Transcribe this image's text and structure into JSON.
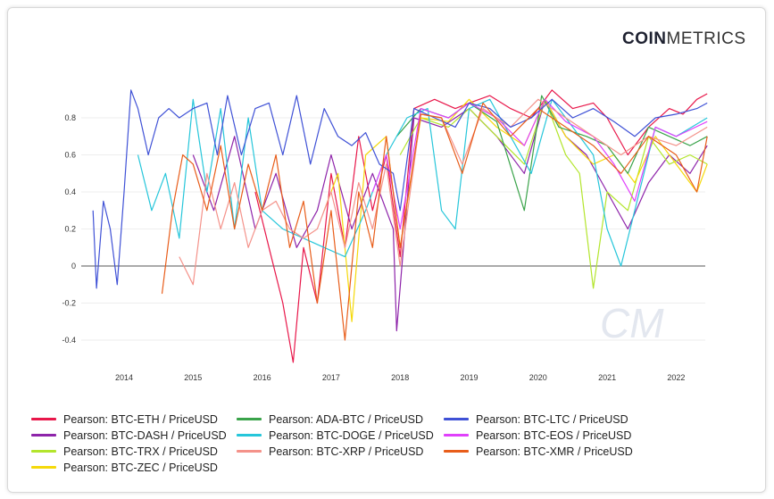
{
  "logo": {
    "bold": "COIN",
    "light": "METRICS"
  },
  "chart_data": {
    "type": "line",
    "title": "",
    "xlabel": "",
    "ylabel": "",
    "xlim": [
      2013.55,
      2022.45
    ],
    "ylim": [
      -0.55,
      0.97
    ],
    "x_ticks": [
      "2014",
      "2015",
      "2016",
      "2017",
      "2018",
      "2019",
      "2020",
      "2021",
      "2022"
    ],
    "y_ticks": [
      0.8,
      0.6,
      0.4,
      0.2,
      0,
      -0.2,
      -0.4
    ],
    "y_tick_labels": [
      "0.8",
      "0.6",
      "0.4",
      "0.2",
      "0",
      "-0.2",
      "-0.4"
    ],
    "grid": true,
    "legend_position": "bottom",
    "series": [
      {
        "name": "Pearson: BTC-ETH / PriceUSD",
        "color": "#e8174a",
        "x": [
          2015.9,
          2016.1,
          2016.3,
          2016.45,
          2016.6,
          2016.8,
          2017.0,
          2017.2,
          2017.4,
          2017.6,
          2017.8,
          2018.0,
          2018.2,
          2018.5,
          2018.8,
          2019.0,
          2019.3,
          2019.6,
          2019.9,
          2020.2,
          2020.5,
          2020.8,
          2021.0,
          2021.3,
          2021.6,
          2021.9,
          2022.1,
          2022.3,
          2022.45
        ],
        "y": [
          0.4,
          0.1,
          -0.2,
          -0.52,
          0.1,
          -0.2,
          0.5,
          0.1,
          0.7,
          0.3,
          0.6,
          0.05,
          0.85,
          0.9,
          0.85,
          0.88,
          0.92,
          0.85,
          0.8,
          0.95,
          0.85,
          0.88,
          0.8,
          0.6,
          0.75,
          0.85,
          0.82,
          0.9,
          0.93
        ]
      },
      {
        "name": "Pearson: BTC-DASH / PriceUSD",
        "color": "#8e24aa",
        "x": [
          2015.0,
          2015.3,
          2015.6,
          2015.9,
          2016.2,
          2016.5,
          2016.8,
          2017.0,
          2017.3,
          2017.6,
          2017.9,
          2017.95,
          2018.2,
          2018.6,
          2019.0,
          2019.4,
          2019.8,
          2020.1,
          2020.4,
          2020.7,
          2021.0,
          2021.3,
          2021.6,
          2021.9,
          2022.2,
          2022.45
        ],
        "y": [
          0.6,
          0.3,
          0.7,
          0.2,
          0.5,
          0.1,
          0.3,
          0.6,
          0.2,
          0.5,
          0.2,
          -0.35,
          0.8,
          0.75,
          0.85,
          0.7,
          0.5,
          0.9,
          0.7,
          0.6,
          0.4,
          0.2,
          0.45,
          0.6,
          0.5,
          0.65
        ]
      },
      {
        "name": "Pearson: BTC-TRX / PriceUSD",
        "color": "#b3e52c",
        "x": [
          2018.0,
          2018.3,
          2018.7,
          2019.0,
          2019.4,
          2019.8,
          2020.1,
          2020.4,
          2020.6,
          2020.8,
          2021.0,
          2021.3,
          2021.6,
          2021.9,
          2022.2,
          2022.45
        ],
        "y": [
          0.6,
          0.8,
          0.75,
          0.85,
          0.7,
          0.55,
          0.9,
          0.6,
          0.5,
          -0.12,
          0.4,
          0.3,
          0.7,
          0.55,
          0.6,
          0.55
        ]
      },
      {
        "name": "Pearson: BTC-ZEC / PriceUSD",
        "color": "#f5d90a",
        "x": [
          2016.9,
          2017.1,
          2017.3,
          2017.5,
          2017.8,
          2018.0,
          2018.3,
          2018.7,
          2019.0,
          2019.4,
          2019.8,
          2020.1,
          2020.4,
          2020.8,
          2021.1,
          2021.4,
          2021.7,
          2022.0,
          2022.3,
          2022.45
        ],
        "y": [
          0.3,
          0.5,
          -0.3,
          0.6,
          0.7,
          0.1,
          0.8,
          0.78,
          0.9,
          0.75,
          0.65,
          0.9,
          0.7,
          0.55,
          0.6,
          0.45,
          0.7,
          0.55,
          0.4,
          0.55
        ]
      },
      {
        "name": "Pearson: ADA-BTC / PriceUSD",
        "color": "#3aa34a",
        "x": [
          2017.95,
          2018.3,
          2018.7,
          2019.0,
          2019.4,
          2019.8,
          2020.05,
          2020.3,
          2020.7,
          2021.0,
          2021.3,
          2021.6,
          2021.9,
          2022.2,
          2022.45
        ],
        "y": [
          0.7,
          0.85,
          0.8,
          0.88,
          0.78,
          0.3,
          0.92,
          0.75,
          0.7,
          0.65,
          0.5,
          0.75,
          0.7,
          0.65,
          0.7
        ]
      },
      {
        "name": "Pearson: BTC-DOGE / PriceUSD",
        "color": "#26c6da",
        "x": [
          2014.2,
          2014.4,
          2014.6,
          2014.8,
          2015.0,
          2015.2,
          2015.4,
          2015.6,
          2015.8,
          2016.0,
          2016.3,
          2016.6,
          2016.9,
          2017.2,
          2017.5,
          2017.8,
          2018.1,
          2018.4,
          2018.6,
          2018.8,
          2019.0,
          2019.3,
          2019.6,
          2019.9,
          2020.2,
          2020.5,
          2020.8,
          2021.0,
          2021.2,
          2021.4,
          2021.7,
          2022.0,
          2022.45
        ],
        "y": [
          0.6,
          0.3,
          0.5,
          0.15,
          0.9,
          0.4,
          0.85,
          0.2,
          0.8,
          0.3,
          0.2,
          0.15,
          0.1,
          0.05,
          0.3,
          0.6,
          0.8,
          0.85,
          0.3,
          0.2,
          0.85,
          0.9,
          0.7,
          0.5,
          0.9,
          0.75,
          0.6,
          0.2,
          0.0,
          0.3,
          0.75,
          0.7,
          0.8
        ]
      },
      {
        "name": "Pearson: BTC-EOS / PriceUSD",
        "color": "#e040fb",
        "x": [
          2017.6,
          2017.8,
          2018.0,
          2018.3,
          2018.7,
          2019.0,
          2019.4,
          2019.8,
          2020.1,
          2020.4,
          2020.8,
          2021.1,
          2021.4,
          2021.7,
          2022.0,
          2022.45
        ],
        "y": [
          0.4,
          0.6,
          0.2,
          0.85,
          0.8,
          0.88,
          0.8,
          0.65,
          0.9,
          0.78,
          0.7,
          0.55,
          0.35,
          0.75,
          0.7,
          0.78
        ]
      },
      {
        "name": "Pearson: BTC-XRP / PriceUSD",
        "color": "#f4928a",
        "x": [
          2014.8,
          2015.0,
          2015.2,
          2015.4,
          2015.6,
          2015.8,
          2016.0,
          2016.2,
          2016.4,
          2016.6,
          2016.8,
          2017.0,
          2017.2,
          2017.4,
          2017.6,
          2017.8,
          2018.0,
          2018.3,
          2018.6,
          2018.9,
          2019.2,
          2019.6,
          2020.0,
          2020.4,
          2020.8,
          2021.2,
          2021.6,
          2022.0,
          2022.45
        ],
        "y": [
          0.05,
          -0.1,
          0.5,
          0.2,
          0.45,
          0.1,
          0.3,
          0.35,
          0.2,
          0.15,
          0.2,
          0.4,
          0.1,
          0.45,
          0.2,
          0.55,
          0.0,
          0.82,
          0.8,
          0.55,
          0.85,
          0.75,
          0.9,
          0.8,
          0.7,
          0.6,
          0.7,
          0.65,
          0.75
        ]
      },
      {
        "name": "Pearson: BTC-LTC / PriceUSD",
        "color": "#3f51d6",
        "x": [
          2013.55,
          2013.6,
          2013.7,
          2013.8,
          2013.9,
          2014.0,
          2014.1,
          2014.2,
          2014.35,
          2014.5,
          2014.65,
          2014.8,
          2015.0,
          2015.2,
          2015.35,
          2015.5,
          2015.7,
          2015.9,
          2016.1,
          2016.3,
          2016.5,
          2016.7,
          2016.9,
          2017.1,
          2017.3,
          2017.5,
          2017.7,
          2017.9,
          2018.0,
          2018.2,
          2018.5,
          2018.8,
          2019.0,
          2019.3,
          2019.6,
          2019.9,
          2020.2,
          2020.5,
          2020.8,
          2021.1,
          2021.4,
          2021.7,
          2022.0,
          2022.3,
          2022.45
        ],
        "y": [
          0.3,
          -0.12,
          0.35,
          0.2,
          -0.1,
          0.4,
          0.95,
          0.85,
          0.6,
          0.8,
          0.85,
          0.8,
          0.85,
          0.88,
          0.6,
          0.92,
          0.6,
          0.85,
          0.88,
          0.6,
          0.92,
          0.55,
          0.85,
          0.7,
          0.65,
          0.72,
          0.55,
          0.5,
          0.3,
          0.85,
          0.8,
          0.75,
          0.88,
          0.85,
          0.75,
          0.8,
          0.9,
          0.8,
          0.85,
          0.78,
          0.7,
          0.8,
          0.82,
          0.85,
          0.88
        ]
      },
      {
        "name": "Pearson: BTC-XMR / PriceUSD",
        "color": "#e85d1a",
        "x": [
          2014.55,
          2014.7,
          2014.85,
          2015.0,
          2015.2,
          2015.4,
          2015.6,
          2015.8,
          2016.0,
          2016.2,
          2016.4,
          2016.6,
          2016.8,
          2017.0,
          2017.2,
          2017.4,
          2017.6,
          2017.8,
          2018.0,
          2018.3,
          2018.6,
          2018.9,
          2019.2,
          2019.6,
          2020.0,
          2020.4,
          2020.8,
          2021.2,
          2021.6,
          2022.0,
          2022.3,
          2022.45
        ],
        "y": [
          -0.15,
          0.3,
          0.6,
          0.55,
          0.3,
          0.65,
          0.2,
          0.55,
          0.3,
          0.6,
          0.1,
          0.35,
          -0.2,
          0.3,
          -0.4,
          0.4,
          0.1,
          0.7,
          0.1,
          0.82,
          0.8,
          0.5,
          0.88,
          0.7,
          0.85,
          0.75,
          0.65,
          0.5,
          0.7,
          0.6,
          0.4,
          0.7
        ]
      }
    ]
  }
}
